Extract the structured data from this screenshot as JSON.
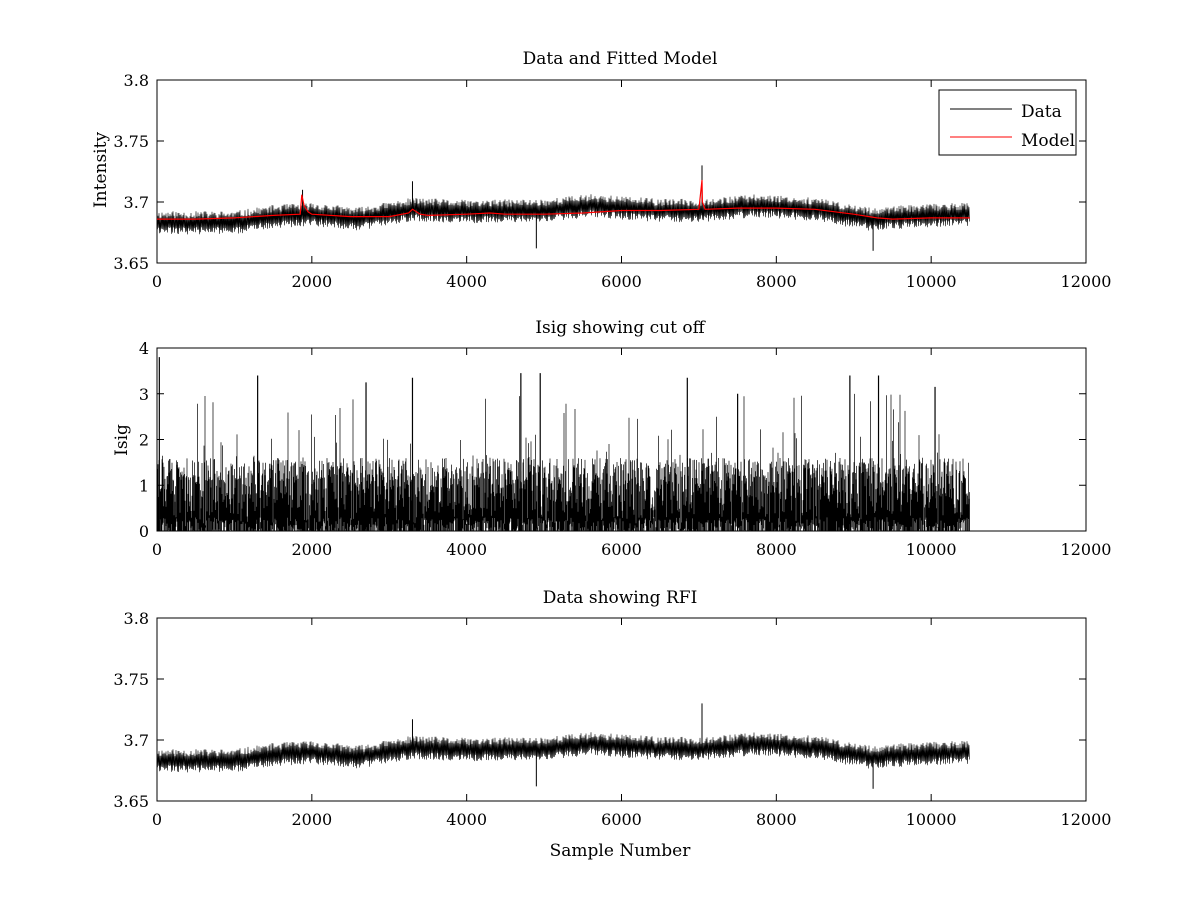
{
  "chart_data": [
    {
      "type": "line",
      "title": "Data and Fitted Model",
      "xlabel": "",
      "ylabel": "Intensity",
      "xlim": [
        0,
        12000
      ],
      "ylim": [
        3.65,
        3.8
      ],
      "xticks": [
        0,
        2000,
        4000,
        6000,
        8000,
        10000,
        12000
      ],
      "yticks": [
        3.65,
        3.7,
        3.75,
        3.8
      ],
      "xtick_labels": [
        "0",
        "2000",
        "4000",
        "6000",
        "8000",
        "10000",
        "12000"
      ],
      "ytick_labels": [
        "3.65",
        "3.7",
        "3.75",
        "3.8"
      ],
      "legend": {
        "position": "top-right",
        "entries": [
          "Data",
          "Model"
        ]
      },
      "grid": false,
      "series": [
        {
          "name": "Data",
          "color": "#000000",
          "style": "noise-band",
          "x_range": [
            0,
            10500
          ],
          "baseline": {
            "x": [
              0,
              1000,
              1500,
              2000,
              2600,
              3300,
              4000,
              5000,
              5600,
              6500,
              7000,
              7800,
              8500,
              9200,
              10000,
              10500
            ],
            "y": [
              3.683,
              3.683,
              3.688,
              3.69,
              3.686,
              3.694,
              3.692,
              3.693,
              3.697,
              3.693,
              3.693,
              3.697,
              3.694,
              3.686,
              3.689,
              3.69
            ]
          },
          "band_halfwidth": 0.008,
          "spikes": [
            {
              "x": 1880,
              "y": 3.71
            },
            {
              "x": 3300,
              "y": 3.717
            },
            {
              "x": 4900,
              "y": 3.662
            },
            {
              "x": 7040,
              "y": 3.73
            },
            {
              "x": 9250,
              "y": 3.66
            }
          ]
        },
        {
          "name": "Model",
          "color": "#ff0000",
          "style": "line",
          "x": [
            0,
            500,
            1000,
            1500,
            1850,
            1870,
            1900,
            1950,
            2000,
            2500,
            3000,
            3250,
            3300,
            3400,
            3500,
            4000,
            4300,
            4500,
            5000,
            5500,
            6000,
            6500,
            7000,
            7040,
            7045,
            7080,
            7500,
            8000,
            8500,
            9000,
            9300,
            9500,
            10000,
            10500
          ],
          "y": [
            3.686,
            3.686,
            3.687,
            3.689,
            3.69,
            3.706,
            3.697,
            3.692,
            3.69,
            3.688,
            3.688,
            3.691,
            3.694,
            3.69,
            3.689,
            3.69,
            3.691,
            3.69,
            3.69,
            3.691,
            3.693,
            3.693,
            3.694,
            3.718,
            3.7,
            3.694,
            3.695,
            3.695,
            3.694,
            3.69,
            3.687,
            3.686,
            3.687,
            3.687
          ]
        }
      ]
    },
    {
      "type": "line",
      "title": "Isig showing cut off",
      "xlabel": "",
      "ylabel": "Isig",
      "xlim": [
        0,
        12000
      ],
      "ylim": [
        0,
        4
      ],
      "xticks": [
        0,
        2000,
        4000,
        6000,
        8000,
        10000,
        12000
      ],
      "yticks": [
        0,
        1,
        2,
        3,
        4
      ],
      "xtick_labels": [
        "0",
        "2000",
        "4000",
        "6000",
        "8000",
        "10000",
        "12000"
      ],
      "ytick_labels": [
        "0",
        "1",
        "2",
        "3",
        "4"
      ],
      "grid": false,
      "series": [
        {
          "color": "#000000",
          "style": "spiky-noise",
          "x_range": [
            0,
            10500
          ],
          "dense_max": 1.6,
          "peaks": [
            {
              "x": 30,
              "y": 3.8
            },
            {
              "x": 1300,
              "y": 3.4
            },
            {
              "x": 2700,
              "y": 3.25
            },
            {
              "x": 3300,
              "y": 3.35
            },
            {
              "x": 4700,
              "y": 3.45
            },
            {
              "x": 4950,
              "y": 3.45
            },
            {
              "x": 6850,
              "y": 3.35
            },
            {
              "x": 7500,
              "y": 3.0
            },
            {
              "x": 8950,
              "y": 3.4
            },
            {
              "x": 9320,
              "y": 3.4
            },
            {
              "x": 10050,
              "y": 3.15
            }
          ]
        }
      ]
    },
    {
      "type": "line",
      "title": "Data showing RFI",
      "xlabel": "Sample Number",
      "ylabel": "",
      "xlim": [
        0,
        12000
      ],
      "ylim": [
        3.65,
        3.8
      ],
      "xticks": [
        0,
        2000,
        4000,
        6000,
        8000,
        10000,
        12000
      ],
      "yticks": [
        3.65,
        3.7,
        3.75,
        3.8
      ],
      "xtick_labels": [
        "0",
        "2000",
        "4000",
        "6000",
        "8000",
        "10000",
        "12000"
      ],
      "ytick_labels": [
        "3.65",
        "3.7",
        "3.75",
        "3.8"
      ],
      "grid": false,
      "series": [
        {
          "color": "#000000",
          "style": "noise-band",
          "x_range": [
            0,
            10500
          ],
          "baseline": {
            "x": [
              0,
              1000,
              1500,
              2000,
              2600,
              3300,
              4000,
              5000,
              5600,
              6500,
              7000,
              7800,
              8500,
              9200,
              10000,
              10500
            ],
            "y": [
              3.683,
              3.683,
              3.688,
              3.69,
              3.686,
              3.694,
              3.692,
              3.693,
              3.697,
              3.693,
              3.693,
              3.697,
              3.694,
              3.686,
              3.689,
              3.69
            ]
          },
          "band_halfwidth": 0.008,
          "spikes": [
            {
              "x": 3300,
              "y": 3.717
            },
            {
              "x": 4900,
              "y": 3.662
            },
            {
              "x": 7040,
              "y": 3.73
            },
            {
              "x": 9250,
              "y": 3.66
            }
          ]
        }
      ]
    }
  ]
}
